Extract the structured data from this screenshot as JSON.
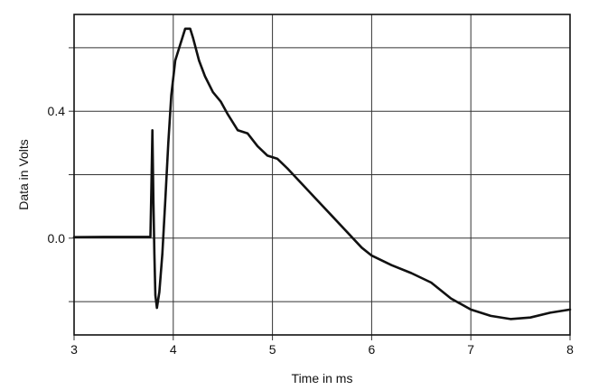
{
  "chart_data": {
    "type": "line",
    "title": "",
    "xlabel": "Time in ms",
    "ylabel": "Data in Volts",
    "xlim": [
      3,
      8
    ],
    "ylim": [
      -0.305,
      0.705
    ],
    "x_ticks": [
      3,
      4,
      5,
      6,
      7,
      8
    ],
    "x_tick_labels": [
      "3",
      "4",
      "5",
      "6",
      "7",
      "8"
    ],
    "y_ticks": [
      -0.2,
      0.0,
      0.2,
      0.4,
      0.6
    ],
    "y_tick_labels": [
      "",
      "0.0",
      "",
      "0.4",
      ""
    ],
    "grid": true,
    "legend": "none",
    "colors": {
      "line": "#111111",
      "grid": "#333333",
      "frame": "#111111",
      "background": "#ffffff"
    },
    "series": [
      {
        "values": [
          [
            3.0,
            0.003
          ],
          [
            3.3,
            0.004
          ],
          [
            3.6,
            0.004
          ],
          [
            3.77,
            0.004
          ],
          [
            3.78,
            0.16
          ],
          [
            3.79,
            0.34
          ],
          [
            3.8,
            0.12
          ],
          [
            3.81,
            -0.05
          ],
          [
            3.82,
            -0.18
          ],
          [
            3.835,
            -0.22
          ],
          [
            3.86,
            -0.17
          ],
          [
            3.89,
            -0.05
          ],
          [
            3.92,
            0.12
          ],
          [
            3.95,
            0.3
          ],
          [
            3.98,
            0.45
          ],
          [
            4.02,
            0.56
          ],
          [
            4.07,
            0.61
          ],
          [
            4.12,
            0.66
          ],
          [
            4.17,
            0.66
          ],
          [
            4.2,
            0.63
          ],
          [
            4.26,
            0.56
          ],
          [
            4.32,
            0.51
          ],
          [
            4.4,
            0.46
          ],
          [
            4.48,
            0.43
          ],
          [
            4.55,
            0.39
          ],
          [
            4.65,
            0.34
          ],
          [
            4.75,
            0.33
          ],
          [
            4.85,
            0.29
          ],
          [
            4.95,
            0.26
          ],
          [
            5.05,
            0.25
          ],
          [
            5.15,
            0.22
          ],
          [
            5.3,
            0.17
          ],
          [
            5.45,
            0.12
          ],
          [
            5.6,
            0.07
          ],
          [
            5.75,
            0.02
          ],
          [
            5.9,
            -0.03
          ],
          [
            6.0,
            -0.055
          ],
          [
            6.2,
            -0.085
          ],
          [
            6.4,
            -0.11
          ],
          [
            6.6,
            -0.14
          ],
          [
            6.8,
            -0.19
          ],
          [
            7.0,
            -0.225
          ],
          [
            7.2,
            -0.245
          ],
          [
            7.4,
            -0.255
          ],
          [
            7.6,
            -0.25
          ],
          [
            7.8,
            -0.235
          ],
          [
            8.0,
            -0.225
          ]
        ]
      }
    ]
  }
}
